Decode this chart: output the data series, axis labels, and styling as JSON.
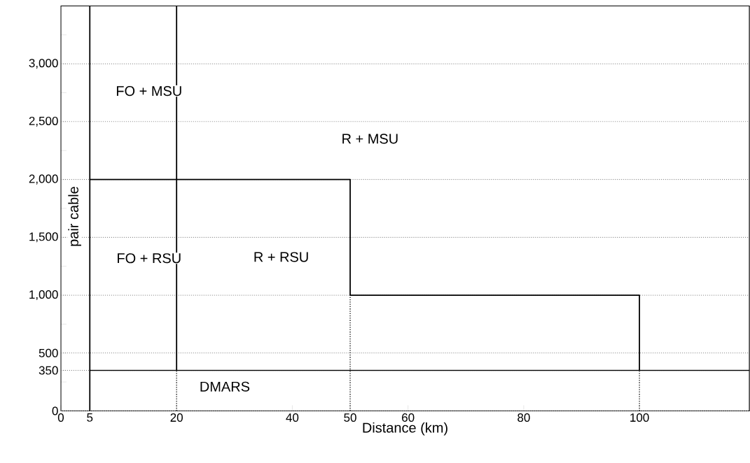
{
  "chart_data": {
    "type": "line",
    "xlabel": "Distance (km)",
    "xlim": [
      0,
      119
    ],
    "ylim": [
      0,
      3500
    ],
    "xticks": [
      0,
      5,
      20,
      40,
      50,
      60,
      80,
      100
    ],
    "yticks": [
      0,
      {
        "value": 250,
        "label": null
      },
      350,
      500,
      {
        "value": 750,
        "label": null
      },
      {
        "value": 1000,
        "label": "1,000"
      },
      {
        "value": 1250,
        "label": null
      },
      {
        "value": 1500,
        "label": "1,500"
      },
      {
        "value": 1750,
        "label": null
      },
      {
        "value": 2000,
        "label": "2,000"
      },
      {
        "value": 2250,
        "label": null
      },
      {
        "value": 2500,
        "label": "2,500"
      },
      {
        "value": 2750,
        "label": null
      },
      {
        "value": 3000,
        "label": "3,000"
      },
      {
        "value": 3250,
        "label": null
      }
    ],
    "grid": "y",
    "marker": "none",
    "line_style": "solid",
    "series": [
      {
        "color": "#000000",
        "x": [
          5,
          5
        ],
        "values": [
          0,
          3500
        ]
      },
      {
        "color": "#000000",
        "x": [
          20,
          20
        ],
        "values": [
          350,
          3500
        ]
      },
      {
        "color": "#000000",
        "x": [
          5,
          50,
          50,
          100,
          100
        ],
        "values": [
          2000,
          2000,
          1000,
          1000,
          350
        ]
      },
      {
        "color": "#000000",
        "x": [
          5,
          119
        ],
        "values": [
          350,
          350
        ]
      },
      {
        "color": "#000000",
        "line_style": "dotted",
        "x": [
          20,
          20
        ],
        "values": [
          0,
          350
        ]
      },
      {
        "color": "#000000",
        "line_style": "dotted",
        "x": [
          50,
          50
        ],
        "values": [
          0,
          1000
        ]
      },
      {
        "color": "#000000",
        "line_style": "dotted",
        "x": [
          100,
          100
        ],
        "values": [
          0,
          350
        ]
      }
    ],
    "annotations": [
      "pair cable",
      "FO + MSU",
      "R + MSU",
      "FO + RSU",
      "R + RSU",
      "DMARS"
    ]
  }
}
